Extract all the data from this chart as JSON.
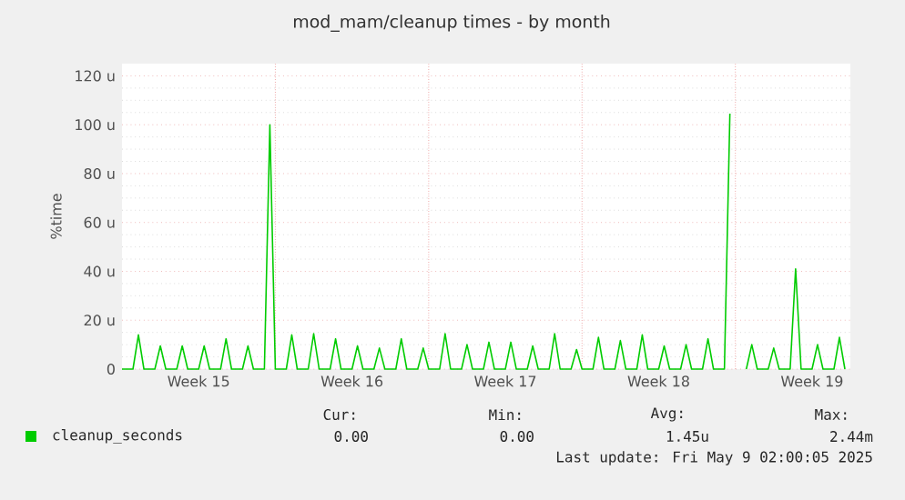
{
  "chart_data": {
    "type": "line",
    "title": "mod_mam/cleanup times - by month",
    "ylabel": "%time",
    "categories": [
      null,
      null,
      null,
      null,
      null,
      null,
      null,
      null,
      null,
      null,
      null,
      null,
      null,
      null,
      "Week 15",
      null,
      null,
      null,
      null,
      null,
      null,
      null,
      null,
      null,
      null,
      null,
      null,
      null,
      null,
      null,
      null,
      null,
      null,
      null,
      null,
      null,
      null,
      null,
      null,
      null,
      null,
      null,
      "Week 16",
      null,
      null,
      null,
      null,
      null,
      null,
      null,
      null,
      null,
      null,
      null,
      null,
      null,
      null,
      null,
      null,
      null,
      null,
      null,
      null,
      null,
      null,
      null,
      null,
      null,
      null,
      null,
      "Week 17",
      null,
      null,
      null,
      null,
      null,
      null,
      null,
      null,
      null,
      null,
      null,
      null,
      null,
      null,
      null,
      null,
      null,
      null,
      null,
      null,
      null,
      null,
      null,
      null,
      null,
      null,
      null,
      "Week 18",
      null,
      null,
      null,
      null,
      null,
      null,
      null,
      null,
      null,
      null,
      null,
      null,
      null,
      null,
      null,
      null,
      null,
      null,
      null,
      null,
      null,
      null,
      null,
      null,
      null,
      null,
      null,
      "Week 19",
      null,
      null,
      null,
      null,
      null,
      null
    ],
    "series": [
      {
        "name": "cleanup_seconds",
        "color": "#00cc00",
        "values": [
          0,
          0,
          0,
          14,
          0,
          0,
          0,
          9.5,
          0,
          0,
          0,
          9.5,
          0,
          0,
          0,
          9.5,
          0,
          0,
          0,
          12.4,
          0,
          0,
          0,
          9.5,
          0,
          0,
          0,
          100,
          0,
          0,
          0,
          14,
          0,
          0,
          0,
          14.5,
          0,
          0,
          0,
          12.4,
          0,
          0,
          0,
          9.5,
          0,
          0,
          0,
          8.6,
          0,
          0,
          0,
          12.4,
          0,
          0,
          0,
          8.6,
          0,
          0,
          0,
          14.5,
          0,
          0,
          0,
          10,
          0,
          0,
          0,
          11,
          0,
          0,
          0,
          11,
          0,
          0,
          0,
          9.5,
          0,
          0,
          0,
          14.5,
          0,
          0,
          0,
          8,
          0,
          0,
          0,
          13,
          0,
          0,
          0,
          11.7,
          0,
          0,
          0,
          14,
          0,
          0,
          0,
          9.5,
          0,
          0,
          0,
          10,
          0,
          0,
          0,
          12.4,
          0,
          0,
          0,
          104.5,
          null,
          null,
          0,
          10,
          0,
          0,
          0,
          8.6,
          0,
          0,
          0,
          41,
          0,
          0,
          0,
          10,
          0,
          0,
          0,
          13,
          0
        ]
      }
    ],
    "ylim": [
      0,
      125
    ],
    "yticks": [
      0,
      {
        "value": 20,
        "label": "20 u"
      },
      {
        "value": 40,
        "label": "40 u"
      },
      {
        "value": 60,
        "label": "60 u"
      },
      {
        "value": 80,
        "label": "80 u"
      },
      {
        "value": 100,
        "label": "100 u"
      },
      {
        "value": 120,
        "label": "120 u"
      }
    ],
    "grid": true,
    "legend": "bottom",
    "marker": "none",
    "line_style": "solid",
    "annotations": [
      "Cur:",
      "Min:",
      "Avg:",
      "Max:",
      "0.00",
      "0.00",
      "1.45u",
      "2.44m",
      "Last update: Fri May  9 02:00:05 2025"
    ]
  }
}
